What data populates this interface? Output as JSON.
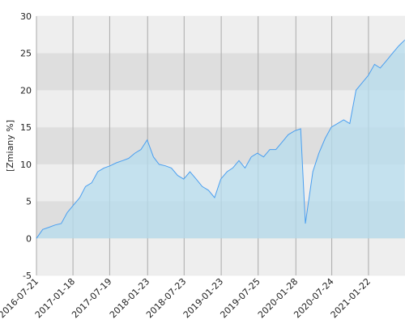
{
  "chart_data": {
    "type": "area",
    "y_label": "[Zmiany %]",
    "x": [
      "2016-07-21",
      "2016-08-21",
      "2016-09-21",
      "2016-10-21",
      "2016-11-21",
      "2016-12-21",
      "2017-01-21",
      "2017-02-21",
      "2017-03-21",
      "2017-04-21",
      "2017-05-21",
      "2017-06-21",
      "2017-07-21",
      "2017-08-21",
      "2017-09-21",
      "2017-10-21",
      "2017-11-21",
      "2017-12-21",
      "2018-01-21",
      "2018-02-21",
      "2018-03-21",
      "2018-04-21",
      "2018-05-21",
      "2018-06-21",
      "2018-07-21",
      "2018-08-21",
      "2018-09-21",
      "2018-10-21",
      "2018-11-21",
      "2018-12-21",
      "2019-01-21",
      "2019-02-21",
      "2019-03-21",
      "2019-04-21",
      "2019-05-21",
      "2019-06-21",
      "2019-07-21",
      "2019-08-21",
      "2019-09-21",
      "2019-10-21",
      "2019-11-21",
      "2019-12-21",
      "2020-01-21",
      "2020-02-21",
      "2020-03-15",
      "2020-04-21",
      "2020-05-21",
      "2020-06-21",
      "2020-07-21",
      "2020-08-21",
      "2020-09-21",
      "2020-10-21",
      "2020-11-21",
      "2020-12-21",
      "2021-01-21",
      "2021-02-21",
      "2021-03-21",
      "2021-04-21",
      "2021-05-21",
      "2021-06-21",
      "2021-07-21"
    ],
    "values": [
      0,
      1.2,
      1.5,
      1.8,
      2.0,
      3.5,
      4.5,
      5.5,
      7.0,
      7.5,
      9.0,
      9.5,
      9.8,
      10.2,
      10.5,
      10.8,
      11.5,
      12.0,
      13.3,
      11.0,
      10.0,
      9.8,
      9.5,
      8.5,
      8.0,
      9.0,
      8.0,
      7.0,
      6.5,
      5.5,
      8.0,
      9.0,
      9.5,
      10.5,
      9.5,
      11.0,
      11.5,
      11.0,
      12.0,
      12.0,
      13.0,
      14.0,
      14.5,
      14.8,
      2.0,
      9.0,
      11.5,
      13.5,
      15.0,
      15.5,
      16.0,
      15.5,
      20.0,
      21.0,
      22.0,
      23.5,
      23.0,
      24.0,
      25.0,
      26.0,
      26.8
    ],
    "color": "#4a9ff0",
    "fill": "#b5dcee",
    "xlim": [
      "2016-07-21",
      "2021-07-22"
    ],
    "xticks": [
      "2016-07-21",
      "2017-01-18",
      "2017-07-19",
      "2018-01-23",
      "2018-07-23",
      "2019-01-23",
      "2019-07-25",
      "2020-01-28",
      "2020-07-24",
      "2021-01-22"
    ],
    "ylim": [
      -5,
      30
    ],
    "yticks": [
      -5,
      0,
      5,
      10,
      15,
      20,
      25,
      30
    ],
    "grid": true
  }
}
